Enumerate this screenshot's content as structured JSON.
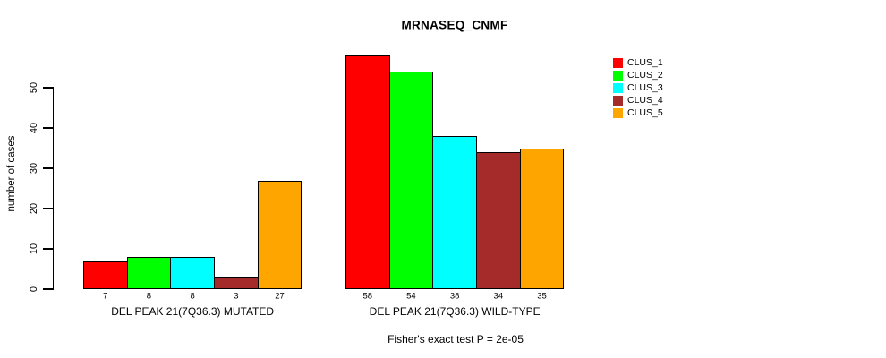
{
  "chart": {
    "title": "MRNASEQ_CNMF",
    "ylabel": "number of cases",
    "footer": "Fisher's exact test P = 2e-05"
  },
  "chart_data": {
    "type": "bar",
    "title": "MRNASEQ_CNMF",
    "xlabel": "",
    "ylabel": "number of cases",
    "ylim": [
      0,
      58
    ],
    "yticks": [
      0,
      10,
      20,
      30,
      40,
      50
    ],
    "grid": false,
    "legend_position": "right",
    "categories": [
      "DEL PEAK 21(7Q36.3) MUTATED",
      "DEL PEAK 21(7Q36.3) WILD-TYPE"
    ],
    "series": [
      {
        "name": "CLUS_1",
        "color": "#FF0000",
        "values": [
          7,
          58
        ]
      },
      {
        "name": "CLUS_2",
        "color": "#00FF00",
        "values": [
          8,
          54
        ]
      },
      {
        "name": "CLUS_3",
        "color": "#00FFFF",
        "values": [
          8,
          38
        ]
      },
      {
        "name": "CLUS_4",
        "color": "#A52A2A",
        "values": [
          3,
          34
        ]
      },
      {
        "name": "CLUS_5",
        "color": "#FFA500",
        "values": [
          27,
          35
        ]
      }
    ],
    "bar_value_labels": [
      [
        7,
        8,
        8,
        3,
        27
      ],
      [
        58,
        54,
        38,
        34,
        35
      ]
    ],
    "annotation": "Fisher's exact test P = 2e-05"
  }
}
